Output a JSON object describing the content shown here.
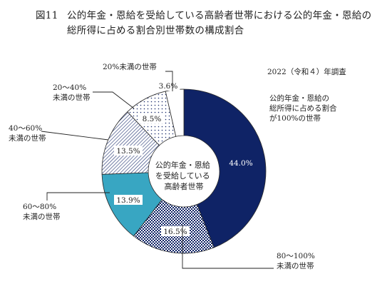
{
  "header": {
    "figure_no": "図11",
    "title": "公的年金・恩給を受給している高齢者世帯における公的年金・恩給の総所得に占める割合別世帯数の構成割合"
  },
  "survey_note": "2022（令和４）年調査",
  "chart_data": {
    "type": "pie",
    "variant": "donut",
    "title": "公的年金・恩給を受給している高齢者世帯における公的年金・恩給の総所得に占める割合別世帯数の構成割合",
    "center_label": [
      "公的年金・恩給",
      "を受給している",
      "高齢者世帯"
    ],
    "annotation": [
      "公的年金・恩給の",
      "総所得に占める割合",
      "が100%の世帯"
    ],
    "unit": "%",
    "slices": [
      {
        "key": "s100",
        "label": [
          "公的年金・恩給の",
          "総所得に占める割合",
          "が100%の世帯"
        ],
        "value": 44.0,
        "value_label": "44.0%",
        "color": "#0f2366",
        "pattern": "solid"
      },
      {
        "key": "s80",
        "label": [
          "80～100%",
          "未満の世帯"
        ],
        "value": 16.5,
        "value_label": "16.5%",
        "color": "#0f2366",
        "pattern": "checker"
      },
      {
        "key": "s60",
        "label": [
          "60～80%",
          "未満の世帯"
        ],
        "value": 13.9,
        "value_label": "13.9%",
        "color": "#38a6c2",
        "pattern": "solid"
      },
      {
        "key": "s40",
        "label": [
          "40～60%",
          "未満の世帯"
        ],
        "value": 13.5,
        "value_label": "13.5%",
        "color": "#1d2f6e",
        "pattern": "diagonal"
      },
      {
        "key": "s20",
        "label": [
          "20～40%",
          "未満の世帯"
        ],
        "value": 8.5,
        "value_label": "8.5%",
        "color": "#1d2f6e",
        "pattern": "dots"
      },
      {
        "key": "s0",
        "label": [
          "20%未満の世帯"
        ],
        "value": 3.6,
        "value_label": "3.6%",
        "color": "#ffffff",
        "pattern": "none"
      }
    ]
  }
}
